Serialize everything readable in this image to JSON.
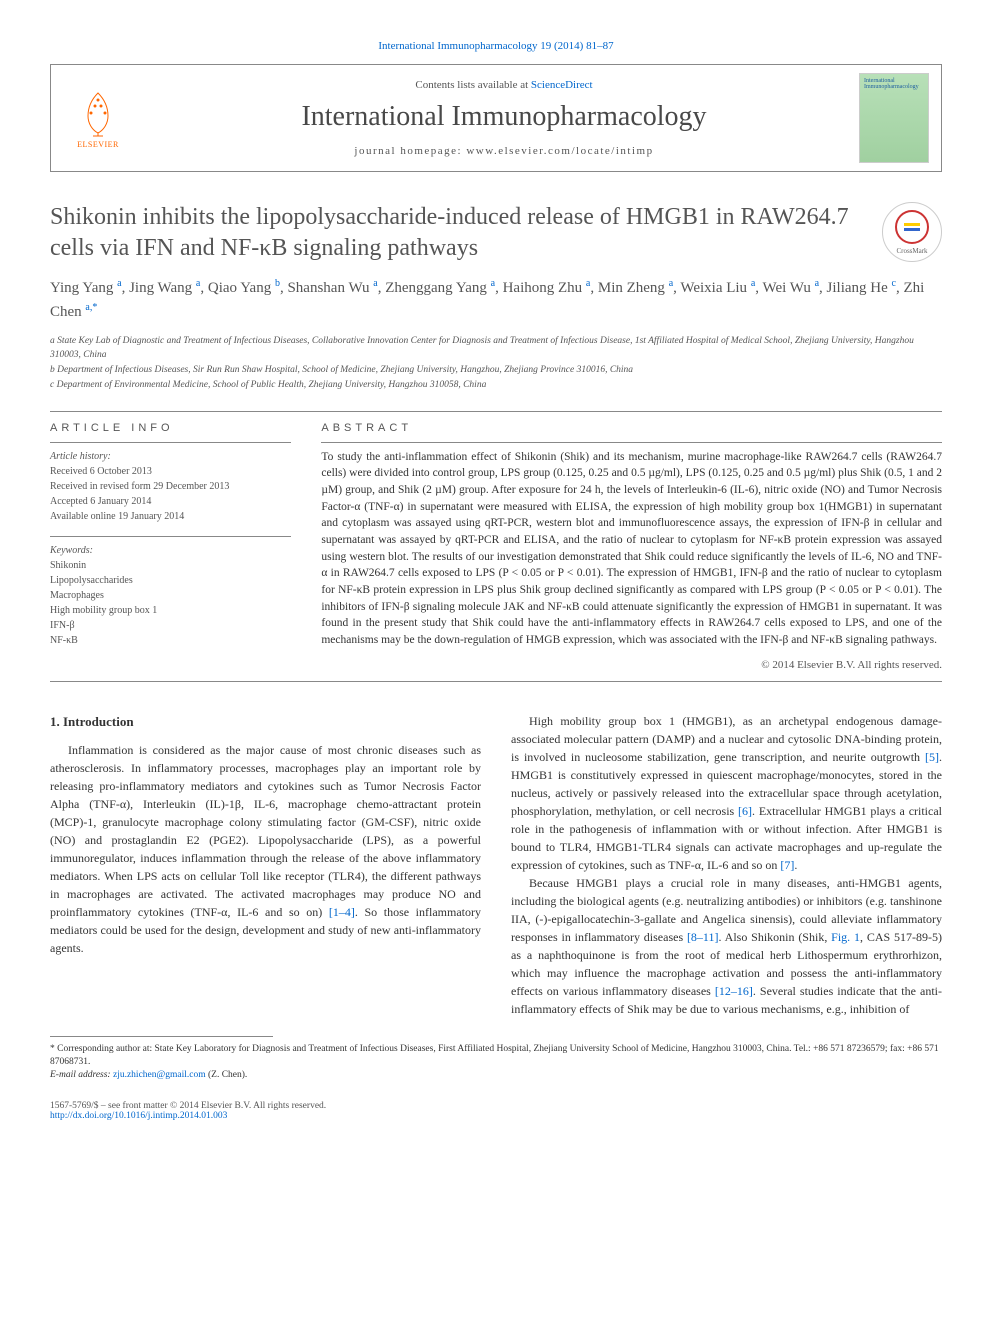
{
  "journal_ref": "International Immunopharmacology 19 (2014) 81–87",
  "header": {
    "contents_prefix": "Contents lists available at ",
    "contents_link": "ScienceDirect",
    "journal_name": "International Immunopharmacology",
    "homepage_prefix": "journal homepage: ",
    "homepage": "www.elsevier.com/locate/intimp",
    "publisher": "ELSEVIER",
    "cover_text": "International Immunopharmacology"
  },
  "crossmark": "CrossMark",
  "title": "Shikonin inhibits the lipopolysaccharide-induced release of HMGB1 in RAW264.7 cells via IFN and NF-κB signaling pathways",
  "authors_html": "Ying Yang <sup>a</sup>, Jing Wang <sup>a</sup>, Qiao Yang <sup>b</sup>, Shanshan Wu <sup>a</sup>, Zhenggang Yang <sup>a</sup>, Haihong Zhu <sup>a</sup>, Min Zheng <sup>a</sup>, Weixia Liu <sup>a</sup>, Wei Wu <sup>a</sup>, Jiliang He <sup>c</sup>, Zhi Chen <sup>a,*</sup>",
  "affiliations": {
    "a": "a State Key Lab of Diagnostic and Treatment of Infectious Diseases, Collaborative Innovation Center for Diagnosis and Treatment of Infectious Disease, 1st Affiliated Hospital of Medical School, Zhejiang University, Hangzhou 310003, China",
    "b": "b Department of Infectious Diseases, Sir Run Run Shaw Hospital, School of Medicine, Zhejiang University, Hangzhou, Zhejiang Province 310016, China",
    "c": "c Department of Environmental Medicine, School of Public Health, Zhejiang University, Hangzhou 310058, China"
  },
  "article_info": {
    "heading": "ARTICLE INFO",
    "history_label": "Article history:",
    "received": "Received 6 October 2013",
    "revised": "Received in revised form 29 December 2013",
    "accepted": "Accepted 6 January 2014",
    "online": "Available online 19 January 2014",
    "keywords_label": "Keywords:",
    "keywords": [
      "Shikonin",
      "Lipopolysaccharides",
      "Macrophages",
      "High mobility group box 1",
      "IFN-β",
      "NF-κB"
    ]
  },
  "abstract": {
    "heading": "ABSTRACT",
    "text": "To study the anti-inflammation effect of Shikonin (Shik) and its mechanism, murine macrophage-like RAW264.7 cells (RAW264.7 cells) were divided into control group, LPS group (0.125, 0.25 and 0.5 µg/ml), LPS (0.125, 0.25 and 0.5 µg/ml) plus Shik (0.5, 1 and 2 µM) group, and Shik (2 µM) group. After exposure for 24 h, the levels of Interleukin-6 (IL-6), nitric oxide (NO) and Tumor Necrosis Factor-α (TNF-α) in supernatant were measured with ELISA, the expression of high mobility group box 1(HMGB1) in supernatant and cytoplasm was assayed using qRT-PCR, western blot and immunofluorescence assays, the expression of IFN-β in cellular and supernatant was assayed by qRT-PCR and ELISA, and the ratio of nuclear to cytoplasm for NF-κB protein expression was assayed using western blot. The results of our investigation demonstrated that Shik could reduce significantly the levels of IL-6, NO and TNF-α in RAW264.7 cells exposed to LPS (P < 0.05 or P < 0.01). The expression of HMGB1, IFN-β and the ratio of nuclear to cytoplasm for NF-κB protein expression in LPS plus Shik group declined significantly as compared with LPS group (P < 0.05 or P < 0.01). The inhibitors of IFN-β signaling molecule JAK and NF-κB could attenuate significantly the expression of HMGB1 in supernatant. It was found in the present study that Shik could have the anti-inflammatory effects in RAW264.7 cells exposed to LPS, and one of the mechanisms may be the down-regulation of HMGB expression, which was associated with the IFN-β and NF-κB signaling pathways.",
    "copyright": "© 2014 Elsevier B.V. All rights reserved."
  },
  "introduction": {
    "heading": "1. Introduction",
    "p1_pre": "Inflammation is considered as the major cause of most chronic diseases such as atherosclerosis. In inflammatory processes, macrophages play an important role by releasing pro-inflammatory mediators and cytokines such as Tumor Necrosis Factor Alpha (TNF-α), Interleukin (IL)-1β, IL-6, macrophage chemo-attractant protein (MCP)-1, granulocyte macrophage colony stimulating factor (GM-CSF), nitric oxide (NO) and prostaglandin E2 (PGE2). Lipopolysaccharide (LPS), as a powerful immunoregulator, induces inflammation through the release of the above inflammatory mediators. When LPS acts on cellular Toll like receptor (TLR4), the different pathways in macrophages are activated. The activated macrophages may produce NO and proinflammatory cytokines (TNF-α, IL-6 and so on) ",
    "p1_ref": "[1–4]",
    "p1_post": ". So those inflammatory mediators could be used for the design, development and study of new anti-inflammatory agents.",
    "p2_pre": "High mobility group box 1 (HMGB1), as an archetypal endogenous damage-associated molecular pattern (DAMP) and a nuclear and cytosolic DNA-binding protein, is involved in nucleosome stabilization, gene transcription, and neurite outgrowth ",
    "p2_ref1": "[5]",
    "p2_mid": ". HMGB1 is constitutively expressed in quiescent macrophage/monocytes, stored in the nucleus, actively or passively released into the extracellular space through acetylation, phosphorylation, methylation, or cell necrosis ",
    "p2_ref2": "[6]",
    "p2_mid2": ". Extracellular HMGB1 plays a critical role in the pathogenesis of inflammation with or without infection. After HMGB1 is bound to TLR4, HMGB1-TLR4 signals can activate macrophages and up-regulate the expression of cytokines, such as TNF-α, IL-6 and so on ",
    "p2_ref3": "[7]",
    "p2_post": ".",
    "p3_pre": "Because HMGB1 plays a crucial role in many diseases, anti-HMGB1 agents, including the biological agents (e.g. neutralizing antibodies) or inhibitors (e.g. tanshinone IIA, (-)-epigallocatechin-3-gallate and Angelica sinensis), could alleviate inflammatory responses in inflammatory diseases ",
    "p3_ref1": "[8–11]",
    "p3_mid1": ". Also Shikonin (Shik, ",
    "p3_fig": "Fig. 1",
    "p3_mid2": ", CAS 517-89-5) as a naphthoquinone is from the root of medical herb Lithospermum erythrorhizon, which may influence the macrophage activation and possess the anti-inflammatory effects on various inflammatory diseases ",
    "p3_ref2": "[12–16]",
    "p3_post": ". Several studies indicate that the anti-inflammatory effects of Shik may be due to various mechanisms, e.g., inhibition of"
  },
  "footnote": {
    "corr": "* Corresponding author at: State Key Laboratory for Diagnosis and Treatment of Infectious Diseases, First Affiliated Hospital, Zhejiang University School of Medicine, Hangzhou 310003, China. Tel.: +86 571 87236579; fax: +86 571 87068731.",
    "email_label": "E-mail address: ",
    "email": "zju.zhichen@gmail.com",
    "email_suffix": " (Z. Chen)."
  },
  "bottom": {
    "issn": "1567-5769/$ – see front matter © 2014 Elsevier B.V. All rights reserved.",
    "doi": "http://dx.doi.org/10.1016/j.intimp.2014.01.003"
  },
  "colors": {
    "link": "#0066cc",
    "text": "#333333",
    "muted": "#555555",
    "border": "#888888",
    "elsevier": "#ff6600"
  }
}
